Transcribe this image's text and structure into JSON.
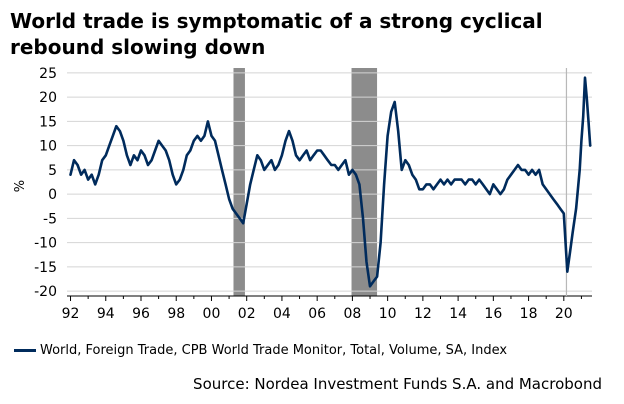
{
  "title_lines": [
    "World trade is symptomatic of a strong cyclical",
    "rebound slowing down"
  ],
  "source": "Source: Nordea Investment Funds S.A. and Macrobond",
  "chart_data": {
    "type": "line",
    "title": "World trade is symptomatic of a strong cyclical rebound slowing down",
    "ylabel": "%",
    "xlabel": "",
    "xlim": [
      1991.8,
      2021.6
    ],
    "ylim": [
      -21,
      26
    ],
    "yticks": [
      25,
      20,
      15,
      10,
      5,
      0,
      -5,
      -10,
      -15,
      -20
    ],
    "xticks": [
      1992,
      1994,
      1996,
      1998,
      2000,
      2002,
      2004,
      2006,
      2008,
      2010,
      2012,
      2014,
      2016,
      2018,
      2020
    ],
    "xtick_labels": [
      "92",
      "94",
      "96",
      "98",
      "00",
      "02",
      "04",
      "06",
      "08",
      "10",
      "12",
      "14",
      "16",
      "18",
      "20"
    ],
    "grid": "horizontal",
    "legend_position": "bottom",
    "recessions": [
      [
        2001.25,
        2001.9
      ],
      [
        2007.95,
        2009.4
      ]
    ],
    "vline": 2020.15,
    "series": [
      {
        "name": "World, Foreign Trade, CPB World Trade Monitor, Total, Volume, SA, Index",
        "color": "#002b5c",
        "x": [
          1992.0,
          1992.2,
          1992.4,
          1992.6,
          1992.8,
          1993.0,
          1993.2,
          1993.4,
          1993.6,
          1993.8,
          1994.0,
          1994.2,
          1994.4,
          1994.6,
          1994.8,
          1995.0,
          1995.2,
          1995.4,
          1995.6,
          1995.8,
          1996.0,
          1996.2,
          1996.4,
          1996.6,
          1996.8,
          1997.0,
          1997.2,
          1997.4,
          1997.6,
          1997.8,
          1998.0,
          1998.2,
          1998.4,
          1998.6,
          1998.8,
          1999.0,
          1999.2,
          1999.4,
          1999.6,
          1999.8,
          2000.0,
          2000.2,
          2000.4,
          2000.6,
          2000.8,
          2001.0,
          2001.2,
          2001.4,
          2001.6,
          2001.8,
          2002.0,
          2002.2,
          2002.4,
          2002.6,
          2002.8,
          2003.0,
          2003.2,
          2003.4,
          2003.6,
          2003.8,
          2004.0,
          2004.2,
          2004.4,
          2004.6,
          2004.8,
          2005.0,
          2005.2,
          2005.4,
          2005.6,
          2005.8,
          2006.0,
          2006.2,
          2006.4,
          2006.6,
          2006.8,
          2007.0,
          2007.2,
          2007.4,
          2007.6,
          2007.8,
          2008.0,
          2008.2,
          2008.4,
          2008.6,
          2008.8,
          2009.0,
          2009.2,
          2009.4,
          2009.6,
          2009.8,
          2010.0,
          2010.2,
          2010.4,
          2010.6,
          2010.8,
          2011.0,
          2011.2,
          2011.4,
          2011.6,
          2011.8,
          2012.0,
          2012.2,
          2012.4,
          2012.6,
          2012.8,
          2013.0,
          2013.2,
          2013.4,
          2013.6,
          2013.8,
          2014.0,
          2014.2,
          2014.4,
          2014.6,
          2014.8,
          2015.0,
          2015.2,
          2015.4,
          2015.6,
          2015.8,
          2016.0,
          2016.2,
          2016.4,
          2016.6,
          2016.8,
          2017.0,
          2017.2,
          2017.4,
          2017.6,
          2017.8,
          2018.0,
          2018.2,
          2018.4,
          2018.6,
          2018.8,
          2019.0,
          2019.2,
          2019.4,
          2019.6,
          2019.8,
          2020.0,
          2020.2,
          2020.35,
          2020.5,
          2020.7,
          2020.9,
          2021.0,
          2021.1,
          2021.2,
          2021.3,
          2021.4,
          2021.5
        ],
        "values": [
          4,
          7,
          6,
          4,
          5,
          3,
          4,
          2,
          4,
          7,
          8,
          10,
          12,
          14,
          13,
          11,
          8,
          6,
          8,
          7,
          9,
          8,
          6,
          7,
          9,
          11,
          10,
          9,
          7,
          4,
          2,
          3,
          5,
          8,
          9,
          11,
          12,
          11,
          12,
          15,
          12,
          11,
          8,
          5,
          2,
          -1,
          -3,
          -4,
          -5,
          -6,
          -2,
          2,
          5,
          8,
          7,
          5,
          6,
          7,
          5,
          6,
          8,
          11,
          13,
          11,
          8,
          7,
          8,
          9,
          7,
          8,
          9,
          9,
          8,
          7,
          6,
          6,
          5,
          6,
          7,
          4,
          5,
          4,
          2,
          -5,
          -14,
          -19,
          -18,
          -17,
          -10,
          2,
          12,
          17,
          19,
          13,
          5,
          7,
          6,
          4,
          3,
          1,
          1,
          2,
          2,
          1,
          2,
          3,
          2,
          3,
          2,
          3,
          3,
          3,
          2,
          3,
          3,
          2,
          3,
          2,
          1,
          0,
          2,
          1,
          0,
          1,
          3,
          4,
          5,
          6,
          5,
          5,
          4,
          5,
          4,
          5,
          2,
          1,
          0,
          -1,
          -2,
          -3,
          -4,
          -16,
          -12,
          -8,
          -3,
          5,
          11,
          16,
          24,
          20,
          15,
          10
        ]
      }
    ]
  }
}
